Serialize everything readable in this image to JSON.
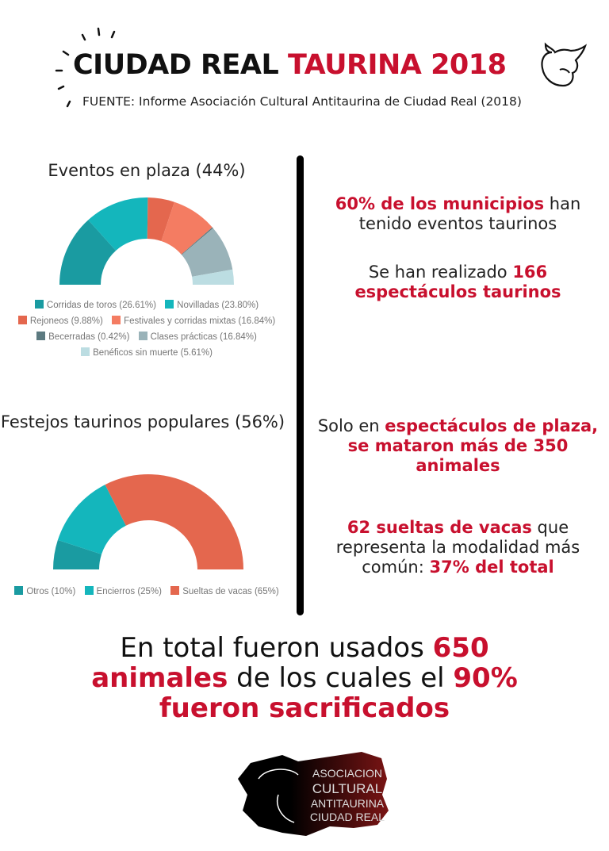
{
  "header": {
    "title_black": "CIUDAD REAL",
    "title_red": "TAURINA 2018",
    "source": "FUENTE: Informe Asociación Cultural Antitaurina de Ciudad Real (2018)",
    "icon": "bull-head-icon"
  },
  "chart_data": [
    {
      "type": "pie",
      "variant": "half-donut",
      "title": "Eventos en plaza (44%)",
      "legend_position": "bottom",
      "categories": [
        "Corridas de toros",
        "Novilladas",
        "Rejoneos",
        "Festivales y corridas mixtas",
        "Becerradas",
        "Clases prácticas",
        "Benéficos sin muerte"
      ],
      "values": [
        26.61,
        23.8,
        9.88,
        16.84,
        0.42,
        16.84,
        5.61
      ],
      "legend_labels": [
        "Corridas de toros (26.61%)",
        "Novilladas (23.80%)",
        "Rejoneos (9.88%)",
        "Festivales y corridas mixtas (16.84%)",
        "Becerradas (0.42%)",
        "Clases prácticas (16.84%)",
        "Benéficos sin muerte (5.61%)"
      ],
      "colors": [
        "#1a9ba1",
        "#14b6bc",
        "#e4674e",
        "#f47c62",
        "#5c7a80",
        "#9ab3b9",
        "#bcdde2"
      ]
    },
    {
      "type": "pie",
      "variant": "half-donut",
      "title": "Festejos taurinos populares (56%)",
      "legend_position": "bottom",
      "categories": [
        "Otros",
        "Encierros",
        "Sueltas de vacas"
      ],
      "values": [
        10,
        25,
        65
      ],
      "legend_labels": [
        "Otros (10%)",
        "Encierros (25%)",
        "Sueltas de vacas (65%)"
      ],
      "colors": [
        "#1a9ba1",
        "#14b6bc",
        "#e4674e"
      ]
    }
  ],
  "facts": [
    {
      "a": "60% de los municipios",
      "b": " han tenido eventos taurinos"
    },
    {
      "a": "Se han realizado ",
      "b": "166 espectáculos taurinos"
    },
    {
      "a": "Solo en ",
      "b": "espectáculos de plaza, se mataron más de 350 animales"
    },
    {
      "a": "62 sueltas de vacas",
      "b": " que representa la modalidad más común: ",
      "c": "37% del total"
    }
  ],
  "summary": {
    "a": "En total fueron usados ",
    "b": "650 animales",
    "c": " de los cuales el ",
    "d": "90% fueron sacrificados"
  },
  "logo": {
    "text": "ASOCIACION CULTURAL ANTITAURINA CIUDAD REAL",
    "color": "#7a1414"
  }
}
